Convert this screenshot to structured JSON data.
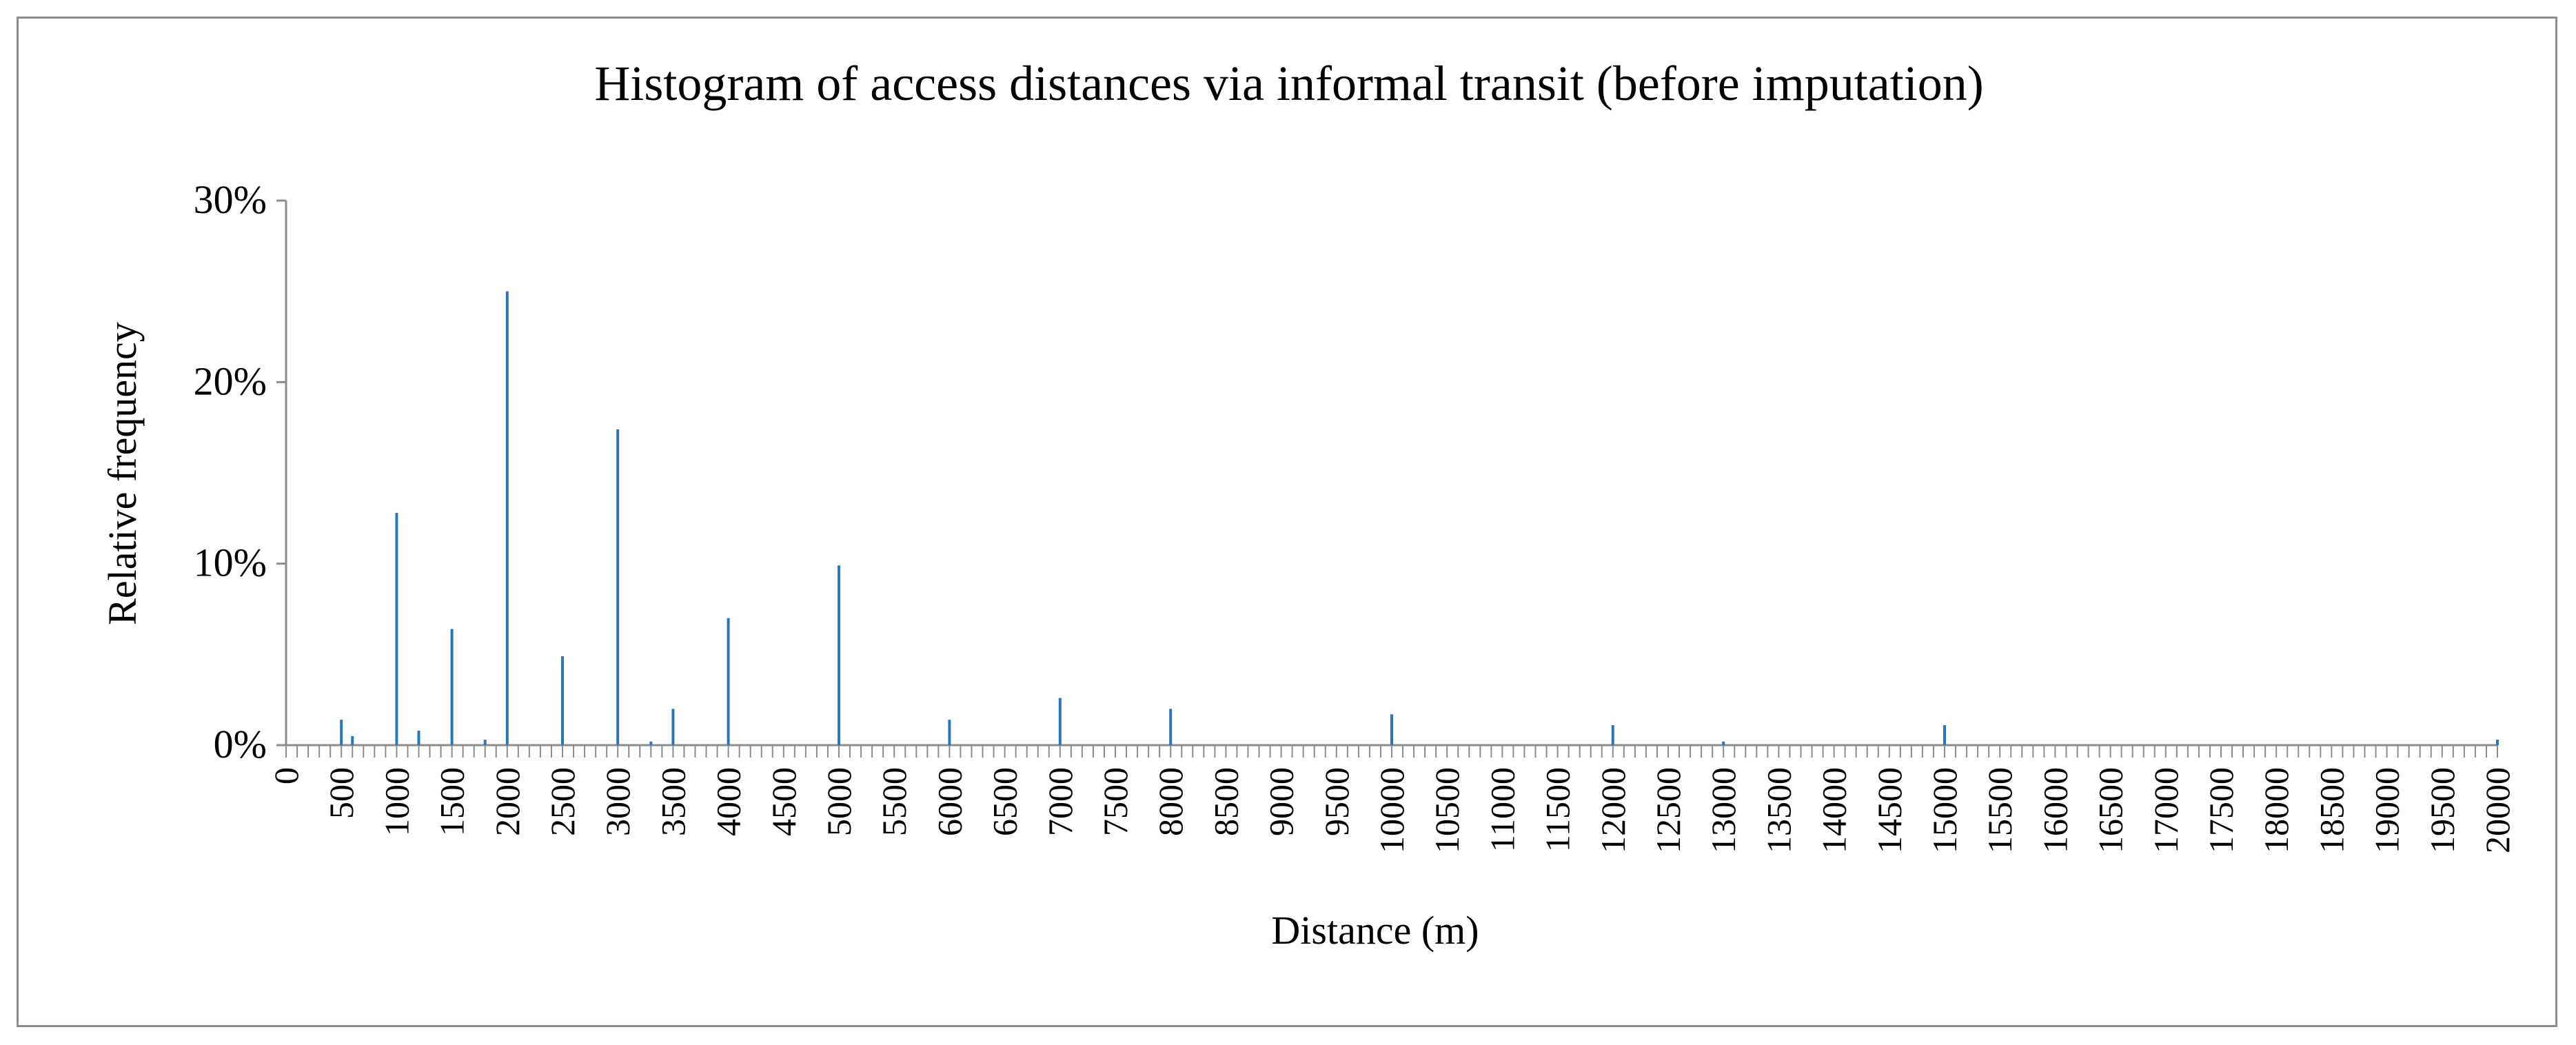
{
  "chart_data": {
    "type": "bar",
    "title": "Histogram of access distances via informal transit (before imputation)",
    "xlabel": "Distance (m)",
    "ylabel": "Relative frequency",
    "x_unit": "m",
    "xlim": [
      0,
      20000
    ],
    "ylim": [
      0,
      30
    ],
    "y_ticks": [
      "0%",
      "10%",
      "20%",
      "30%"
    ],
    "y_tick_values": [
      0,
      10,
      20,
      30
    ],
    "x_tick_labels": [
      "0",
      "500",
      "1000",
      "1500",
      "2000",
      "2500",
      "3000",
      "3500",
      "4000",
      "4500",
      "5000",
      "5500",
      "6000",
      "6500",
      "7000",
      "7500",
      "8000",
      "8500",
      "9000",
      "9500",
      "10000",
      "10500",
      "11000",
      "11500",
      "12000",
      "12500",
      "13000",
      "13500",
      "14000",
      "14500",
      "15000",
      "15500",
      "16000",
      "16500",
      "17000",
      "17500",
      "18000",
      "18500",
      "19000",
      "19500",
      "20000"
    ],
    "x_tick_values": [
      0,
      500,
      1000,
      1500,
      2000,
      2500,
      3000,
      3500,
      4000,
      4500,
      5000,
      5500,
      6000,
      6500,
      7000,
      7500,
      8000,
      8500,
      9000,
      9500,
      10000,
      10500,
      11000,
      11500,
      12000,
      12500,
      13000,
      13500,
      14000,
      14500,
      15000,
      15500,
      16000,
      16500,
      17000,
      17500,
      18000,
      18500,
      19000,
      19500,
      20000
    ],
    "bin_width": 100,
    "series": [
      {
        "color": "#2e75b6",
        "x": [
          500,
          600,
          1000,
          1200,
          1500,
          1800,
          2000,
          2500,
          3000,
          3300,
          3500,
          4000,
          5000,
          6000,
          7000,
          8000,
          10000,
          12000,
          13000,
          15000,
          20000
        ],
        "values": [
          1.4,
          0.5,
          12.8,
          0.8,
          6.4,
          0.3,
          25.0,
          4.9,
          17.4,
          0.2,
          2.0,
          7.0,
          9.9,
          1.4,
          2.6,
          2.0,
          1.7,
          1.1,
          0.2,
          1.1,
          0.3
        ]
      }
    ],
    "grid": false,
    "legend": "none"
  }
}
